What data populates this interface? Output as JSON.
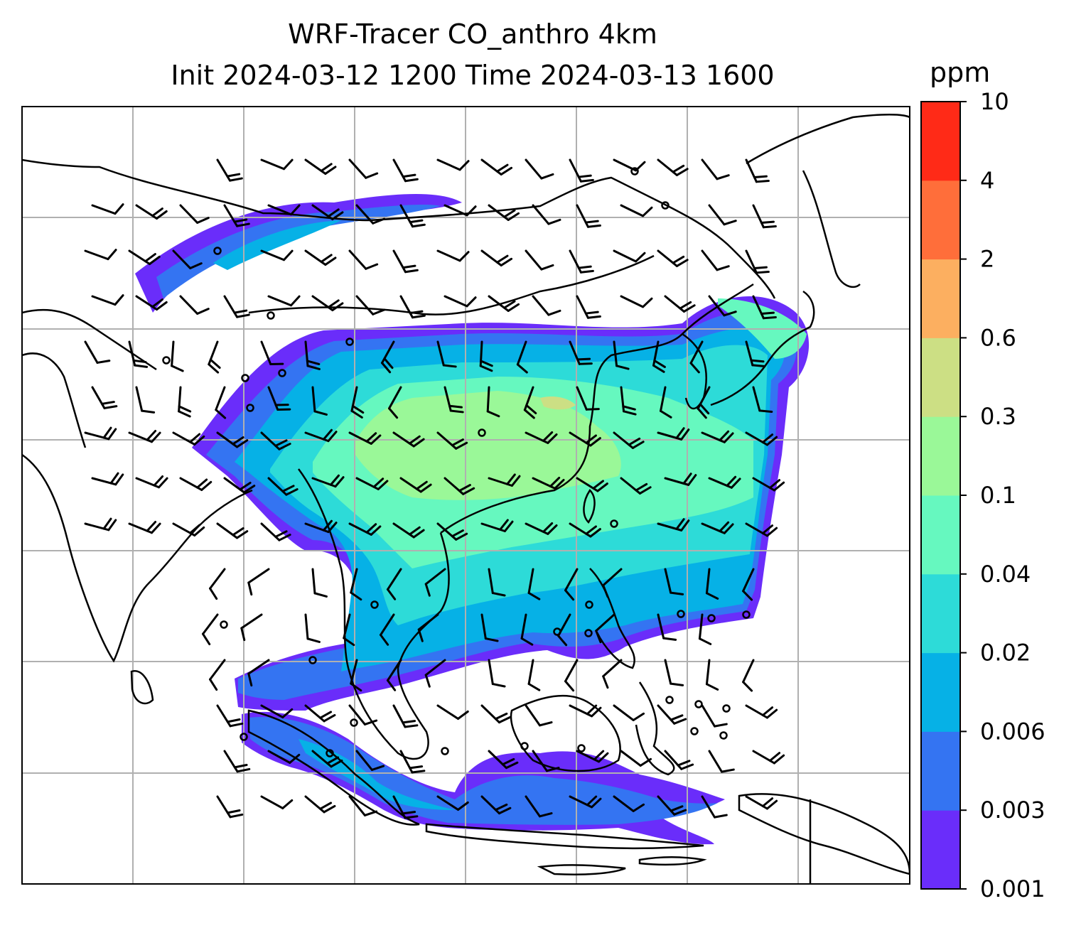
{
  "chart_data": {
    "type": "heatmap",
    "title": "WRF-Tracer CO_anthro 4km",
    "subtitle": "Init 2024-03-12 1200 Time 2024-03-13 1600",
    "colorbar": {
      "unit": "ppm",
      "levels": [
        "0.001",
        "0.003",
        "0.006",
        "0.02",
        "0.04",
        "0.1",
        "0.3",
        "0.6",
        "2",
        "4",
        "10"
      ],
      "colors": [
        "#6a2dfa",
        "#3474f2",
        "#06b1e6",
        "#2ddbd8",
        "#66f8bf",
        "#9af898",
        "#ccdf84",
        "#fcaf60",
        "#ff6e3a",
        "#ff2a17"
      ]
    },
    "grid": true,
    "overlays": [
      "coastlines",
      "wind-barbs"
    ]
  }
}
